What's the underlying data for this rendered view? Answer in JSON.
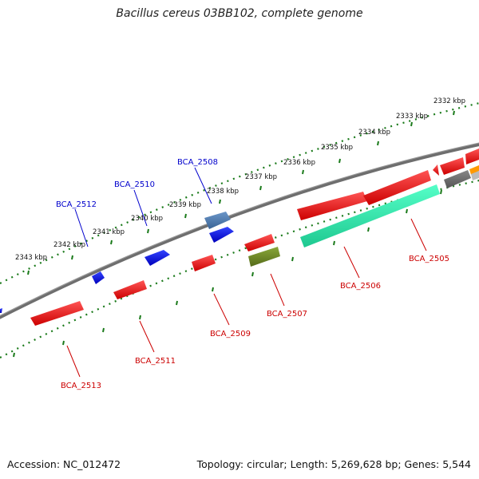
{
  "title": "Bacillus cereus 03BB102, complete genome",
  "footer": {
    "accession": "Accession: NC_012472",
    "topology": "Topology: circular; Length: 5,269,628 bp; Genes: 5,544"
  },
  "colors": {
    "backbone": "#7a7a7a",
    "tick_marks": "#1a7a1a",
    "forward_other": "#0000ee",
    "forward_pseudo": "#4a7ab0",
    "cds": "#ee1111",
    "rRNA": "#22e8a8",
    "misc": "#6b8e23",
    "unknown": "#666666",
    "orange": "#ff9900",
    "label_forward": "#0000cc",
    "label_reverse": "#cc0000"
  },
  "ticks": [
    "2332 kbp",
    "2333 kbp",
    "2334 kbp",
    "2335 kbp",
    "2336 kbp",
    "2337 kbp",
    "2338 kbp",
    "2339 kbp",
    "2340 kbp",
    "2341 kbp",
    "2342 kbp",
    "2343 kbp"
  ],
  "genes_forward": [
    {
      "id": "BCA_2508",
      "label": "BCA_2508",
      "color": "forward_other"
    },
    {
      "id": "BCA_2510",
      "label": "BCA_2510",
      "color": "forward_other"
    },
    {
      "id": "BCA_2512",
      "label": "BCA_2512",
      "color": "forward_other"
    }
  ],
  "genes_reverse": [
    {
      "id": "BCA_2505",
      "label": "BCA_2505",
      "color": "rRNA"
    },
    {
      "id": "BCA_2506",
      "label": "BCA_2506",
      "color": "cds"
    },
    {
      "id": "BCA_2507",
      "label": "BCA_2507",
      "color": "misc"
    },
    {
      "id": "BCA_2509",
      "label": "BCA_2509",
      "color": "cds"
    },
    {
      "id": "BCA_2511",
      "label": "BCA_2511",
      "color": "cds"
    },
    {
      "id": "BCA_2513",
      "label": "BCA_2513",
      "color": "cds"
    }
  ]
}
